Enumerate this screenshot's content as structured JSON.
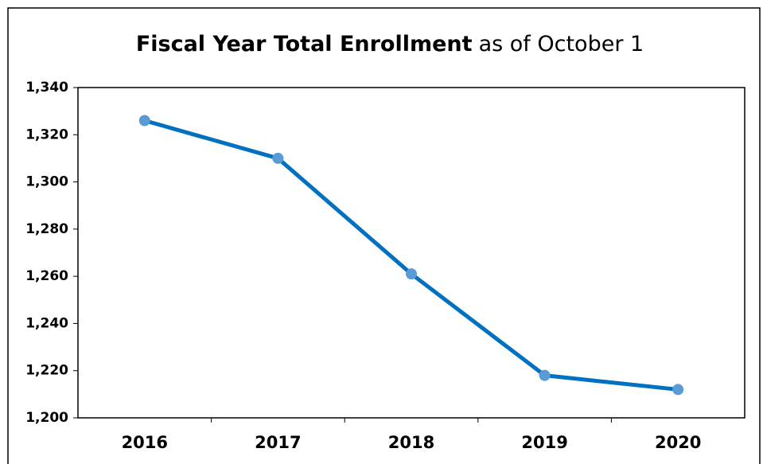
{
  "chart_data": {
    "type": "line",
    "title": "Fiscal Year Total Enrollment",
    "subtitle": "as of October 1",
    "categories": [
      "2016",
      "2017",
      "2018",
      "2019",
      "2020"
    ],
    "series": [
      {
        "name": "Total Enrollment",
        "color": "#0070c0",
        "marker_color": "#5b9bd5",
        "values": [
          1326,
          1310,
          1261,
          1218,
          1212
        ]
      }
    ],
    "ylim": [
      1200,
      1340
    ],
    "yticks": [
      {
        "value": 1200,
        "label": "1,200"
      },
      {
        "value": 1220,
        "label": "1,220"
      },
      {
        "value": 1240,
        "label": "1,240"
      },
      {
        "value": 1260,
        "label": "1,260"
      },
      {
        "value": 1280,
        "label": "1,280"
      },
      {
        "value": 1300,
        "label": "1,300"
      },
      {
        "value": 1320,
        "label": "1,320"
      },
      {
        "value": 1340,
        "label": "1,340"
      }
    ],
    "grid": false
  }
}
